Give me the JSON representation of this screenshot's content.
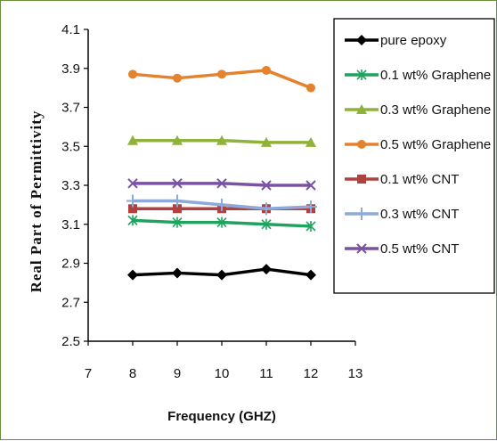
{
  "chart_data": {
    "type": "line",
    "title": "",
    "xlabel": "Frequency (GHZ)",
    "ylabel": "Real Part of  Permittivity",
    "xlim": [
      7,
      13
    ],
    "ylim": [
      2.5,
      4.1
    ],
    "xticks": [
      "7",
      "8",
      "9",
      "10",
      "11",
      "12",
      "13"
    ],
    "yticks": [
      "2.5",
      "2.7",
      "2.9",
      "3.1",
      "3.3",
      "3.5",
      "3.7",
      "3.9",
      "4.1"
    ],
    "x": [
      8,
      9,
      10,
      11,
      12
    ],
    "grid": false,
    "legend_position": "right",
    "series": [
      {
        "name": "pure epoxy",
        "color": "#000000",
        "marker": "diamond",
        "values": [
          2.84,
          2.85,
          2.84,
          2.87,
          2.84
        ]
      },
      {
        "name": "0.1 wt% Graphene",
        "color": "#1fa35f",
        "marker": "asterisk",
        "values": [
          3.12,
          3.11,
          3.11,
          3.1,
          3.09
        ]
      },
      {
        "name": "0.3 wt% Graphene",
        "color": "#8fb33a",
        "marker": "triangle",
        "values": [
          3.53,
          3.53,
          3.53,
          3.52,
          3.52
        ]
      },
      {
        "name": "0.5 wt% Graphene",
        "color": "#e5822e",
        "marker": "circle",
        "values": [
          3.87,
          3.85,
          3.87,
          3.89,
          3.8
        ]
      },
      {
        "name": "0.1 wt% CNT",
        "color": "#b0413e",
        "marker": "square",
        "values": [
          3.18,
          3.18,
          3.18,
          3.18,
          3.18
        ]
      },
      {
        "name": "0.3 wt% CNT",
        "color": "#8eaadb",
        "marker": "plus",
        "values": [
          3.22,
          3.22,
          3.2,
          3.18,
          3.19
        ]
      },
      {
        "name": "0.5 wt% CNT",
        "color": "#7a52a3",
        "marker": "x",
        "values": [
          3.31,
          3.31,
          3.31,
          3.3,
          3.3
        ]
      }
    ]
  }
}
